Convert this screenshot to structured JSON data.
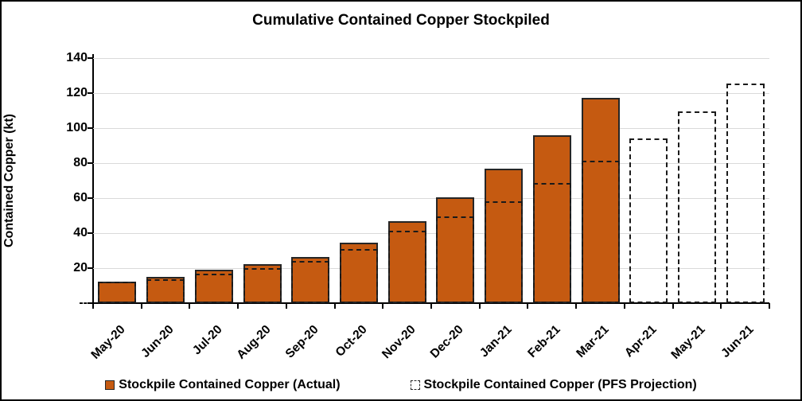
{
  "figure": {
    "title": "Cumulative Contained Copper Stockpiled",
    "ylabel": "Contained Copper (kt)"
  },
  "chart_data": {
    "type": "bar",
    "title": "Cumulative Contained Copper Stockpiled",
    "xlabel": "",
    "ylabel": "Contained Copper (kt)",
    "categories": [
      "May-20",
      "Jun-20",
      "Jul-20",
      "Aug-20",
      "Sep-20",
      "Oct-20",
      "Nov-20",
      "Dec-20",
      "Jan-21",
      "Feb-21",
      "Mar-21",
      "Apr-21",
      "May-21",
      "Jun-21"
    ],
    "series": [
      {
        "name": "Stockpile Contained Copper (Actual)",
        "style": "solid-fill",
        "values": [
          12.5,
          15,
          19,
          22.5,
          26.5,
          34.5,
          47,
          60.5,
          77,
          96,
          117.5,
          null,
          null,
          null
        ]
      },
      {
        "name": "Stockpile Contained Copper (PFS Projection)",
        "style": "dashed-outline",
        "values": [
          12.3,
          13.5,
          17,
          20,
          24,
          31,
          41.5,
          49.5,
          58,
          68.5,
          81.5,
          94,
          109.5,
          125.5
        ]
      }
    ],
    "ylim": [
      0,
      140
    ],
    "ytick_interval": 20,
    "ytick_labels": [
      "--",
      "20",
      "40",
      "60",
      "80",
      "100",
      "120",
      "140"
    ],
    "grid": true,
    "gridline_at_top": true,
    "legend_position": "bottom",
    "x_tick_label_rotation_deg": -45
  },
  "legend": {
    "items": [
      {
        "label": "Stockpile Contained Copper (Actual)",
        "marker": "filled-square"
      },
      {
        "label": "Stockpile Contained Copper (PFS Projection)",
        "marker": "dashed-square"
      }
    ]
  },
  "colors": {
    "actual_fill": "#C55A11",
    "bar_border": "#262626",
    "projection_border": "#1A1A1A",
    "gridline": "#D9D9D9",
    "axis": "#000000",
    "background": "#FFFFFF",
    "text": "#000000"
  }
}
